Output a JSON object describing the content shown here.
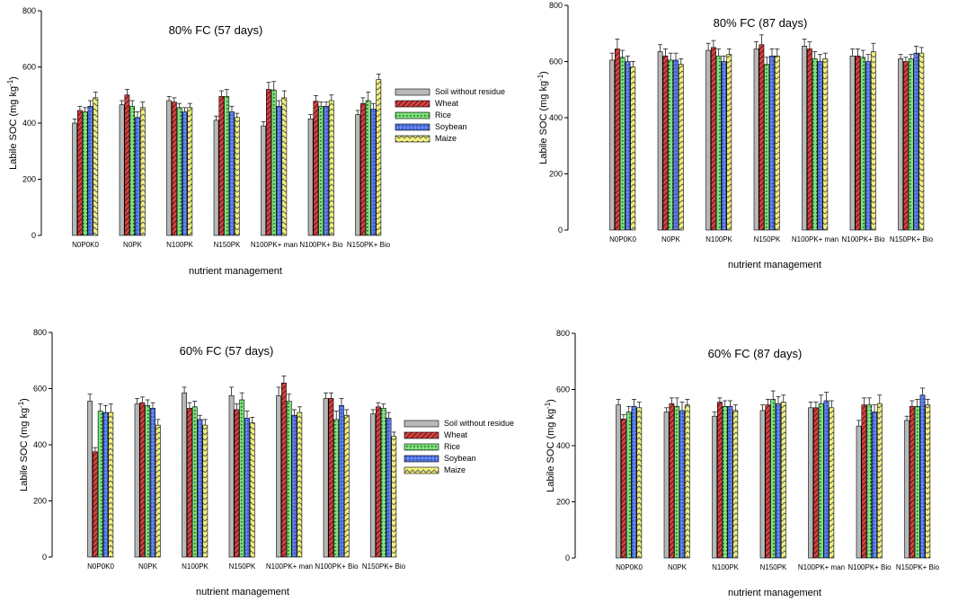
{
  "series_styles": [
    {
      "key": "soil",
      "fill": "#b8b8b8",
      "pattern": "solid"
    },
    {
      "key": "wheat",
      "fill": "#d84040",
      "pattern": "hatch"
    },
    {
      "key": "rice",
      "fill": "#7ee07e",
      "pattern": "dots"
    },
    {
      "key": "soybean",
      "fill": "#3a5fd0",
      "pattern": "cross"
    },
    {
      "key": "maize",
      "fill": "#f2f07a",
      "pattern": "zigzag"
    }
  ],
  "chart_data": [
    {
      "type": "bar",
      "title": "80% FC (57 days)",
      "xlabel": "nutrient management",
      "ylabel": "Labile SOC (mg kg",
      "ylabel_sup": "-1",
      "ylabel_close": ")",
      "ylim": [
        0,
        800
      ],
      "yticks": [
        "0",
        "200",
        "400",
        "600",
        "800"
      ],
      "categories": [
        "N0P0K0",
        "N0PK",
        "N100PK",
        "N150PK",
        "N100PK+ man",
        "N100PK+ Bio",
        "N150PK+ Bio"
      ],
      "legend": {
        "placement": "right",
        "entries": [
          "Soil without residue",
          "Wheat",
          "Rice",
          "Soybean",
          "Maize"
        ]
      },
      "series": [
        {
          "name": "Soil without residue",
          "values": [
            400,
            465,
            480,
            410,
            390,
            415,
            430
          ],
          "errors": [
            15,
            15,
            15,
            15,
            15,
            15,
            15
          ]
        },
        {
          "name": "Wheat",
          "values": [
            445,
            500,
            475,
            495,
            520,
            478,
            470
          ],
          "errors": [
            15,
            20,
            15,
            20,
            25,
            20,
            20
          ]
        },
        {
          "name": "Rice",
          "values": [
            440,
            460,
            455,
            495,
            518,
            460,
            480
          ],
          "errors": [
            15,
            20,
            15,
            25,
            30,
            15,
            30
          ]
        },
        {
          "name": "Soybean",
          "values": [
            460,
            420,
            440,
            440,
            460,
            460,
            450
          ],
          "errors": [
            20,
            20,
            15,
            20,
            20,
            15,
            20
          ]
        },
        {
          "name": "Maize",
          "values": [
            490,
            455,
            455,
            420,
            490,
            480,
            555
          ],
          "errors": [
            20,
            20,
            15,
            15,
            25,
            20,
            20
          ]
        }
      ]
    },
    {
      "type": "bar",
      "title": "80% FC (87 days)",
      "xlabel": "nutrient management",
      "ylabel": "Labile SOC (mg kg",
      "ylabel_sup": "-1",
      "ylabel_close": ")",
      "ylim": [
        0,
        800
      ],
      "yticks": [
        "0",
        "200",
        "400",
        "600",
        "800"
      ],
      "categories": [
        "N0P0K0",
        "N0PK",
        "N100PK",
        "N150PK",
        "N100PK+ man",
        "N100PK+ Bio",
        "N150PK+ Bio"
      ],
      "legend": null,
      "series": [
        {
          "name": "Soil without residue",
          "values": [
            605,
            635,
            640,
            645,
            655,
            620,
            610
          ],
          "errors": [
            25,
            25,
            25,
            25,
            25,
            25,
            15
          ]
        },
        {
          "name": "Wheat",
          "values": [
            645,
            620,
            650,
            660,
            645,
            620,
            600
          ],
          "errors": [
            35,
            25,
            25,
            35,
            25,
            25,
            15
          ]
        },
        {
          "name": "Rice",
          "values": [
            615,
            605,
            620,
            590,
            610,
            615,
            610
          ],
          "errors": [
            25,
            25,
            25,
            25,
            25,
            25,
            15
          ]
        },
        {
          "name": "Soybean",
          "values": [
            600,
            605,
            600,
            620,
            600,
            600,
            630
          ],
          "errors": [
            20,
            25,
            20,
            25,
            25,
            25,
            25
          ]
        },
        {
          "name": "Maize",
          "values": [
            580,
            590,
            625,
            620,
            610,
            635,
            630
          ],
          "errors": [
            20,
            20,
            20,
            25,
            20,
            30,
            20
          ]
        }
      ]
    },
    {
      "type": "bar",
      "title": "60% FC (57 days)",
      "xlabel": "nutrient management",
      "ylabel": "Labile SOC (mg kg",
      "ylabel_sup": "-1",
      "ylabel_close": ")",
      "ylim": [
        0,
        800
      ],
      "yticks": [
        "0",
        "200",
        "400",
        "600",
        "800"
      ],
      "categories": [
        "N0P0K0",
        "N0PK",
        "N100PK",
        "N150PK",
        "N100PK+ man",
        "N100PK+ Bio",
        "N150PK+ Bio"
      ],
      "legend": {
        "placement": "right",
        "entries": [
          "Soil without residue",
          "Wheat",
          "Rice",
          "Soybean",
          "Maize"
        ]
      },
      "series": [
        {
          "name": "Soil without residue",
          "values": [
            555,
            545,
            585,
            575,
            575,
            565,
            510
          ],
          "errors": [
            25,
            20,
            20,
            30,
            30,
            20,
            15
          ]
        },
        {
          "name": "Wheat",
          "values": [
            375,
            550,
            530,
            525,
            620,
            565,
            535
          ],
          "errors": [
            15,
            20,
            20,
            20,
            25,
            20,
            15
          ]
        },
        {
          "name": "Rice",
          "values": [
            520,
            540,
            535,
            560,
            555,
            490,
            530
          ],
          "errors": [
            25,
            20,
            20,
            25,
            25,
            30,
            15
          ]
        },
        {
          "name": "Soybean",
          "values": [
            515,
            530,
            490,
            495,
            505,
            540,
            495
          ],
          "errors": [
            25,
            20,
            15,
            25,
            20,
            25,
            20
          ]
        },
        {
          "name": "Maize",
          "values": [
            515,
            470,
            470,
            478,
            515,
            505,
            430
          ],
          "errors": [
            30,
            20,
            20,
            20,
            20,
            20,
            15
          ]
        }
      ]
    },
    {
      "type": "bar",
      "title": "60% FC (87 days)",
      "xlabel": "nutrient management",
      "ylabel": "Labile SOC (mg kg",
      "ylabel_sup": "-1",
      "ylabel_close": ")",
      "ylim": [
        0,
        800
      ],
      "yticks": [
        "0",
        "200",
        "400",
        "600",
        "800"
      ],
      "categories": [
        "N0P0K0",
        "N0PK",
        "N100PK",
        "N150PK",
        "N100PK+ man",
        "N100PK+ Bio",
        "N150PK+ Bio"
      ],
      "legend": null,
      "series": [
        {
          "name": "Soil without residue",
          "values": [
            545,
            520,
            505,
            525,
            535,
            470,
            490
          ],
          "errors": [
            20,
            15,
            15,
            20,
            20,
            20,
            15
          ]
        },
        {
          "name": "Wheat",
          "values": [
            495,
            550,
            555,
            545,
            535,
            545,
            540
          ],
          "errors": [
            15,
            20,
            15,
            20,
            20,
            25,
            20
          ]
        },
        {
          "name": "Rice",
          "values": [
            520,
            540,
            540,
            565,
            550,
            545,
            540
          ],
          "errors": [
            20,
            30,
            20,
            30,
            30,
            25,
            25
          ]
        },
        {
          "name": "Soybean",
          "values": [
            540,
            525,
            540,
            550,
            560,
            520,
            580
          ],
          "errors": [
            25,
            30,
            20,
            25,
            30,
            25,
            25
          ]
        },
        {
          "name": "Maize",
          "values": [
            535,
            545,
            525,
            555,
            535,
            550,
            545
          ],
          "errors": [
            20,
            20,
            20,
            25,
            25,
            30,
            20
          ]
        }
      ]
    }
  ]
}
